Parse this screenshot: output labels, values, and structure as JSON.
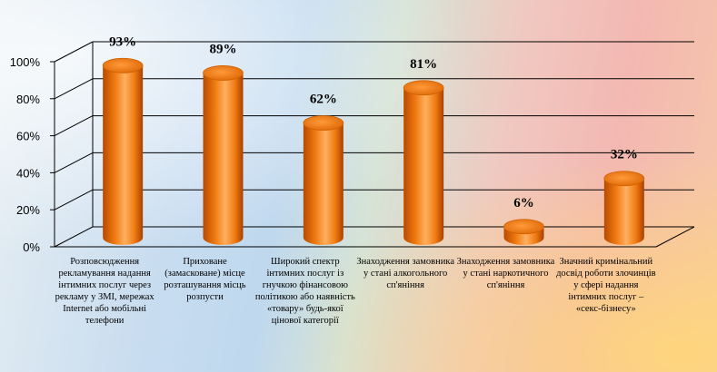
{
  "chart_data": {
    "type": "bar",
    "categories": [
      "Розповсюдження рекламування надання інтимних послуг через рекламу у ЗМІ, мережах Internet або мобільні телефони",
      "Приховане (замасковане) місце розташування місць розпусти",
      "Широкий спектр інтимних послуг із гнучкою фінансовою політикою або наявність «товару» будь-якої цінової категорії",
      "Знаходження замовника у стані алкогольного сп'яніння",
      "Знаходження замовника у стані наркотичного сп'яніння",
      "Значний кримінальний досвід роботи злочинців у сфері надання інтимних послуг – «секс-бізнесу»"
    ],
    "values": [
      93,
      89,
      62,
      81,
      6,
      32
    ],
    "data_labels": [
      "93%",
      "89%",
      "62%",
      "81%",
      "6%",
      "32%"
    ],
    "yticks": [
      "0%",
      "20%",
      "40%",
      "60%",
      "80%",
      "100%"
    ],
    "ylim": [
      0,
      100
    ],
    "grid": true,
    "style": "3d-cylinder",
    "colors": {
      "bar": "#f07a10",
      "bar_dark": "#b84a00",
      "bar_light": "#ffb060",
      "grid": "#000000"
    }
  }
}
